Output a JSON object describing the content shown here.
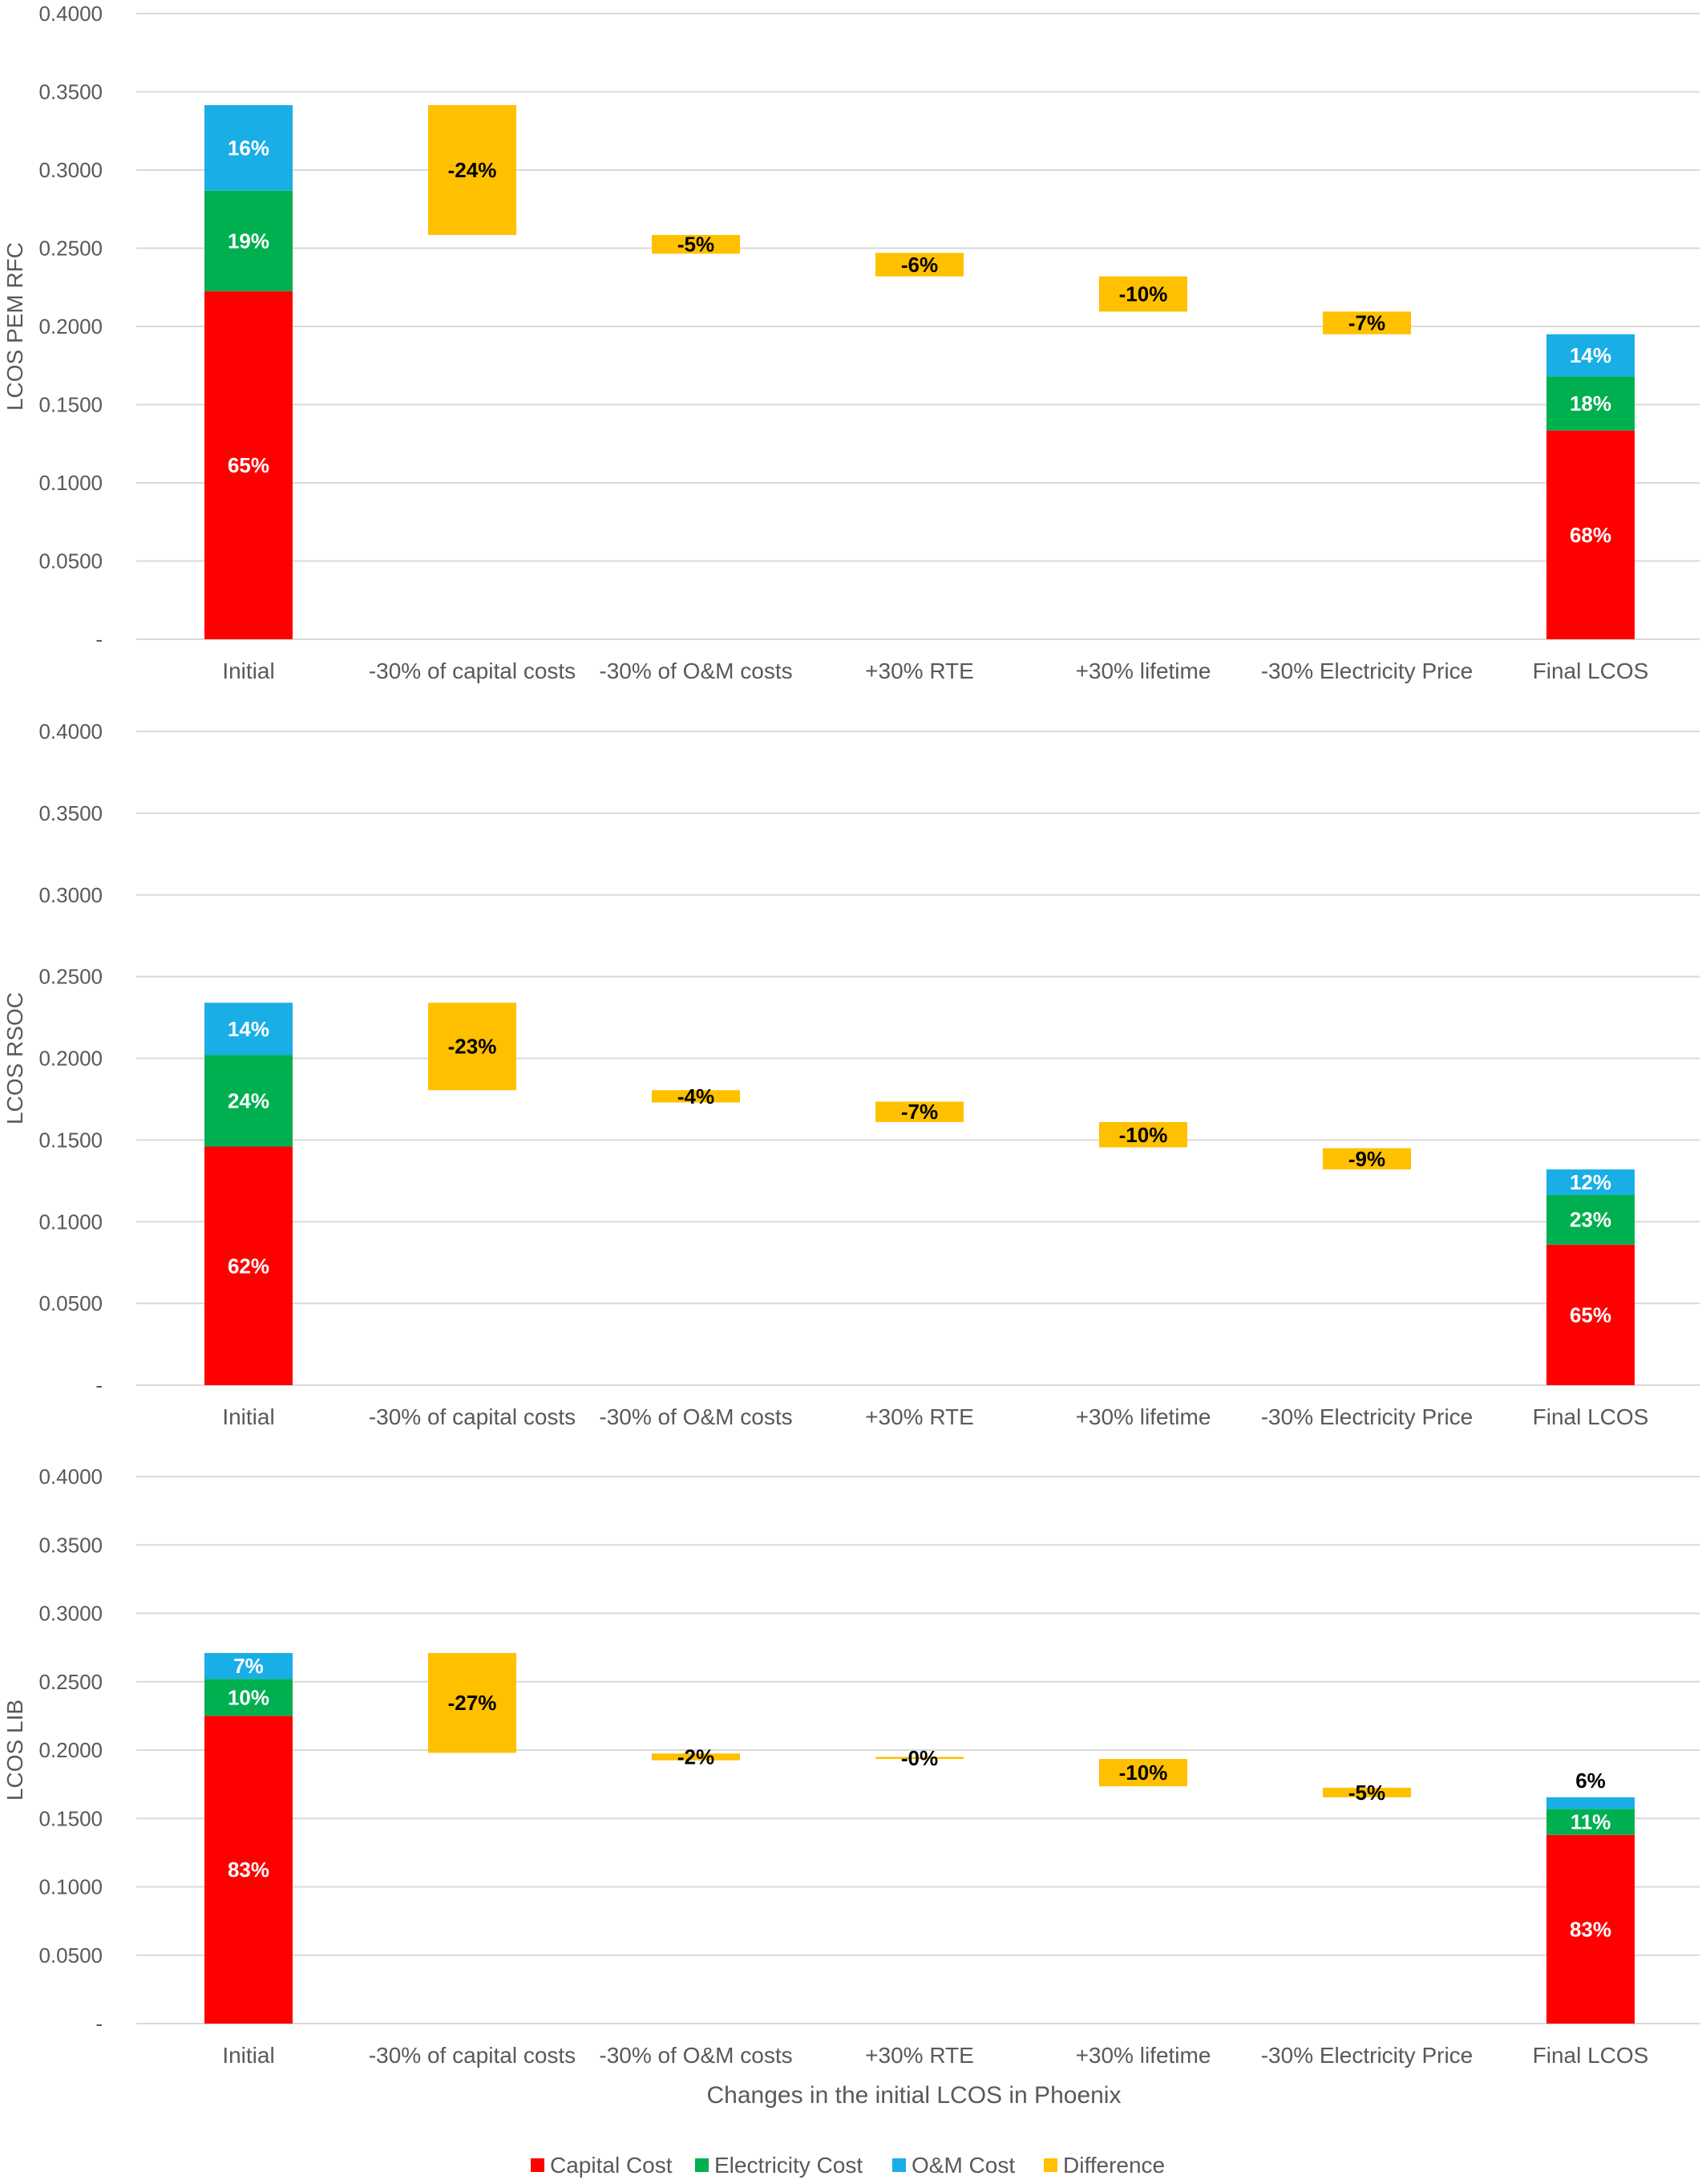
{
  "colors": {
    "capital": "#ff0000",
    "electricity": "#00b050",
    "om": "#1aaee6",
    "difference": "#ffc000"
  },
  "chart_data": [
    {
      "type": "bar",
      "subtype": "stacked-waterfall",
      "ylabel": "LCOS PEM RFC",
      "ylim": [
        0,
        0.4
      ],
      "yticks": [
        "-",
        "0.0500",
        "0.1000",
        "0.1500",
        "0.2000",
        "0.2500",
        "0.3000",
        "0.3500",
        "0.4000"
      ],
      "categories": [
        "Initial",
        "-30% of capital costs",
        "-30% of O&M costs",
        "+30% RTE",
        "+30% lifetime",
        "-30% Electricity Price",
        "Final LCOS"
      ],
      "bars": [
        {
          "category": "Initial",
          "segments": [
            {
              "series": "Capital Cost",
              "from": 0,
              "to": 0.2225,
              "label": "65%"
            },
            {
              "series": "Electricity Cost",
              "from": 0.2225,
              "to": 0.2868,
              "label": "19%"
            },
            {
              "series": "O&M Cost",
              "from": 0.2868,
              "to": 0.3415,
              "label": "16%"
            }
          ]
        },
        {
          "category": "-30% of capital costs",
          "segments": [
            {
              "series": "Difference",
              "from": 0.2585,
              "to": 0.3415,
              "label": "-24%"
            }
          ]
        },
        {
          "category": "-30% of O&M costs",
          "segments": [
            {
              "series": "Difference",
              "from": 0.2465,
              "to": 0.2585,
              "label": "-5%"
            }
          ]
        },
        {
          "category": "+30% RTE",
          "segments": [
            {
              "series": "Difference",
              "from": 0.232,
              "to": 0.247,
              "label": "-6%"
            }
          ]
        },
        {
          "category": "+30% lifetime",
          "segments": [
            {
              "series": "Difference",
              "from": 0.2095,
              "to": 0.232,
              "label": "-10%"
            }
          ]
        },
        {
          "category": "-30% Electricity Price",
          "segments": [
            {
              "series": "Difference",
              "from": 0.195,
              "to": 0.2095,
              "label": "-7%"
            }
          ]
        },
        {
          "category": "Final LCOS",
          "segments": [
            {
              "series": "Capital Cost",
              "from": 0,
              "to": 0.1335,
              "label": "68%"
            },
            {
              "series": "Electricity Cost",
              "from": 0.1335,
              "to": 0.168,
              "label": "18%"
            },
            {
              "series": "O&M Cost",
              "from": 0.168,
              "to": 0.195,
              "label": "14%"
            }
          ]
        }
      ]
    },
    {
      "type": "bar",
      "subtype": "stacked-waterfall",
      "ylabel": "LCOS RSOC",
      "ylim": [
        0,
        0.4
      ],
      "yticks": [
        "-",
        "0.0500",
        "0.1000",
        "0.1500",
        "0.2000",
        "0.2500",
        "0.3000",
        "0.3500",
        "0.4000"
      ],
      "categories": [
        "Initial",
        "-30% of capital costs",
        "-30% of O&M costs",
        "+30% RTE",
        "+30% lifetime",
        "-30% Electricity Price",
        "Final LCOS"
      ],
      "bars": [
        {
          "category": "Initial",
          "segments": [
            {
              "series": "Capital Cost",
              "from": 0,
              "to": 0.146,
              "label": "62%"
            },
            {
              "series": "Electricity Cost",
              "from": 0.146,
              "to": 0.202,
              "label": "24%"
            },
            {
              "series": "O&M Cost",
              "from": 0.202,
              "to": 0.234,
              "label": "14%"
            }
          ]
        },
        {
          "category": "-30% of capital costs",
          "segments": [
            {
              "series": "Difference",
              "from": 0.1805,
              "to": 0.234,
              "label": "-23%"
            }
          ]
        },
        {
          "category": "-30% of O&M costs",
          "segments": [
            {
              "series": "Difference",
              "from": 0.173,
              "to": 0.1805,
              "label": "-4%"
            }
          ]
        },
        {
          "category": "+30% RTE",
          "segments": [
            {
              "series": "Difference",
              "from": 0.161,
              "to": 0.1735,
              "label": "-7%"
            }
          ]
        },
        {
          "category": "+30% lifetime",
          "segments": [
            {
              "series": "Difference",
              "from": 0.1455,
              "to": 0.161,
              "label": "-10%"
            }
          ]
        },
        {
          "category": "-30% Electricity Price",
          "segments": [
            {
              "series": "Difference",
              "from": 0.132,
              "to": 0.145,
              "label": "-9%"
            }
          ]
        },
        {
          "category": "Final LCOS",
          "segments": [
            {
              "series": "Capital Cost",
              "from": 0,
              "to": 0.086,
              "label": "65%"
            },
            {
              "series": "Electricity Cost",
              "from": 0.086,
              "to": 0.1165,
              "label": "23%"
            },
            {
              "series": "O&M Cost",
              "from": 0.1165,
              "to": 0.132,
              "label": "12%"
            }
          ]
        }
      ]
    },
    {
      "type": "bar",
      "subtype": "stacked-waterfall",
      "ylabel": "LCOS LIB",
      "xlabel": "Changes in the initial LCOS in Phoenix",
      "ylim": [
        0,
        0.4
      ],
      "yticks": [
        "-",
        "0.0500",
        "0.1000",
        "0.1500",
        "0.2000",
        "0.2500",
        "0.3000",
        "0.3500",
        "0.4000"
      ],
      "categories": [
        "Initial",
        "-30% of capital costs",
        "-30% of O&M costs",
        "+30% RTE",
        "+30% lifetime",
        "-30% Electricity Price",
        "Final LCOS"
      ],
      "bars": [
        {
          "category": "Initial",
          "segments": [
            {
              "series": "Capital Cost",
              "from": 0,
              "to": 0.225,
              "label": "83%"
            },
            {
              "series": "Electricity Cost",
              "from": 0.225,
              "to": 0.252,
              "label": "10%"
            },
            {
              "series": "O&M Cost",
              "from": 0.252,
              "to": 0.271,
              "label": "7%"
            }
          ]
        },
        {
          "category": "-30% of capital costs",
          "segments": [
            {
              "series": "Difference",
              "from": 0.198,
              "to": 0.271,
              "label": "-27%"
            }
          ]
        },
        {
          "category": "-30% of O&M costs",
          "segments": [
            {
              "series": "Difference",
              "from": 0.1925,
              "to": 0.1975,
              "label": "-2%"
            }
          ]
        },
        {
          "category": "+30% RTE",
          "segments": [
            {
              "series": "Difference",
              "from": 0.1935,
              "to": 0.195,
              "label": "-0%"
            }
          ]
        },
        {
          "category": "+30% lifetime",
          "segments": [
            {
              "series": "Difference",
              "from": 0.1735,
              "to": 0.1935,
              "label": "-10%"
            }
          ]
        },
        {
          "category": "-30% Electricity Price",
          "segments": [
            {
              "series": "Difference",
              "from": 0.1655,
              "to": 0.1725,
              "label": "-5%"
            }
          ]
        },
        {
          "category": "Final LCOS",
          "segments": [
            {
              "series": "Capital Cost",
              "from": 0,
              "to": 0.138,
              "label": "83%"
            },
            {
              "series": "Electricity Cost",
              "from": 0.138,
              "to": 0.157,
              "label": "11%"
            },
            {
              "series": "O&M Cost",
              "from": 0.157,
              "to": 0.1655,
              "label": "6%",
              "label_position": "above"
            }
          ]
        }
      ]
    }
  ],
  "legend": {
    "position": "bottom",
    "items": [
      {
        "series": "Capital Cost",
        "label": "Capital Cost",
        "color_key": "capital"
      },
      {
        "series": "Electricity Cost",
        "label": "Electricity Cost",
        "color_key": "electricity"
      },
      {
        "series": "O&M Cost",
        "label": "O&M Cost",
        "color_key": "om"
      },
      {
        "series": "Difference",
        "label": "Difference",
        "color_key": "difference"
      }
    ]
  }
}
